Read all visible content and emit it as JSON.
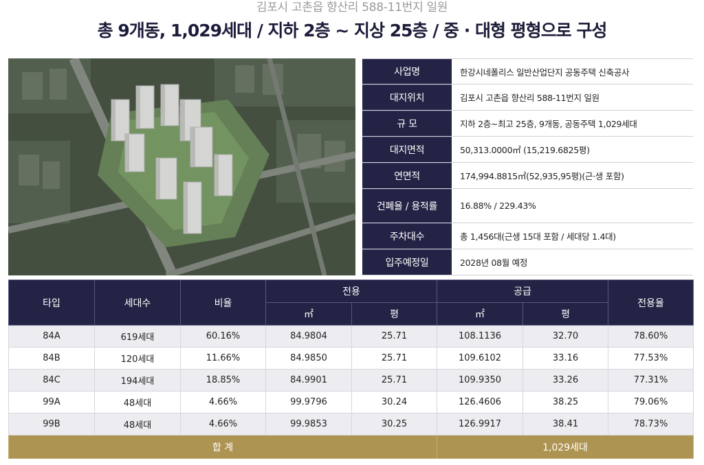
{
  "header": {
    "subtitle": "김포시 고촌읍 향산리 588-11번지 일원",
    "title": "총 9개동, 1,029세대 / 지하 2층 ~ 지상 25층 / 중 · 대형 평형으로 구성"
  },
  "info": [
    {
      "label": "사업명",
      "value": "한강시네폴리스 일반산업단지 공동주택 신축공사"
    },
    {
      "label": "대지위치",
      "value": "김포시 고촌읍 향산리 588-11번지 일원"
    },
    {
      "label": "규 모",
      "value": "지하 2층~최고 25층, 9개동, 공동주택 1,029세대"
    },
    {
      "label": "대지면적",
      "value": "50,313.0000㎡ (15,219.6825평)"
    },
    {
      "label": "연면적",
      "value": "174,994.8815㎡(52,935,95평)(근·생 포함)"
    },
    {
      "label": "건폐율 / 용적률",
      "value": "16.88% / 229.43%"
    },
    {
      "label": "주차대수",
      "value": "총 1,456대(근생 15대 포함 / 세대당 1.4대)"
    },
    {
      "label": "입주예정일",
      "value": "2028년 08월 예정"
    }
  ],
  "table": {
    "headers": {
      "type": "타입",
      "units": "세대수",
      "ratio": "비율",
      "exclusive": "전용",
      "supply": "공급",
      "exclusive_rate": "전용율",
      "sqm": "㎡",
      "pyeong": "평"
    },
    "rows": [
      [
        "84A",
        "619세대",
        "60.16%",
        "84.9804",
        "25.71",
        "108.1136",
        "32.70",
        "78.60%"
      ],
      [
        "84B",
        "120세대",
        "11.66%",
        "84.9850",
        "25.71",
        "109.6102",
        "33.16",
        "77.53%"
      ],
      [
        "84C",
        "194세대",
        "18.85%",
        "84.9901",
        "25.71",
        "109.9350",
        "33.26",
        "77.31%"
      ],
      [
        "99A",
        "48세대",
        "4.66%",
        "99.9796",
        "30.24",
        "126.4606",
        "38.25",
        "79.06%"
      ],
      [
        "99B",
        "48세대",
        "4.66%",
        "99.9853",
        "30.25",
        "126.9917",
        "38.41",
        "78.73%"
      ]
    ],
    "total": {
      "label": "합 계",
      "value": "1,029세대"
    }
  },
  "colors": {
    "navy": "#232345",
    "gold": "#ae9453",
    "row_shade": "#ececf1"
  }
}
